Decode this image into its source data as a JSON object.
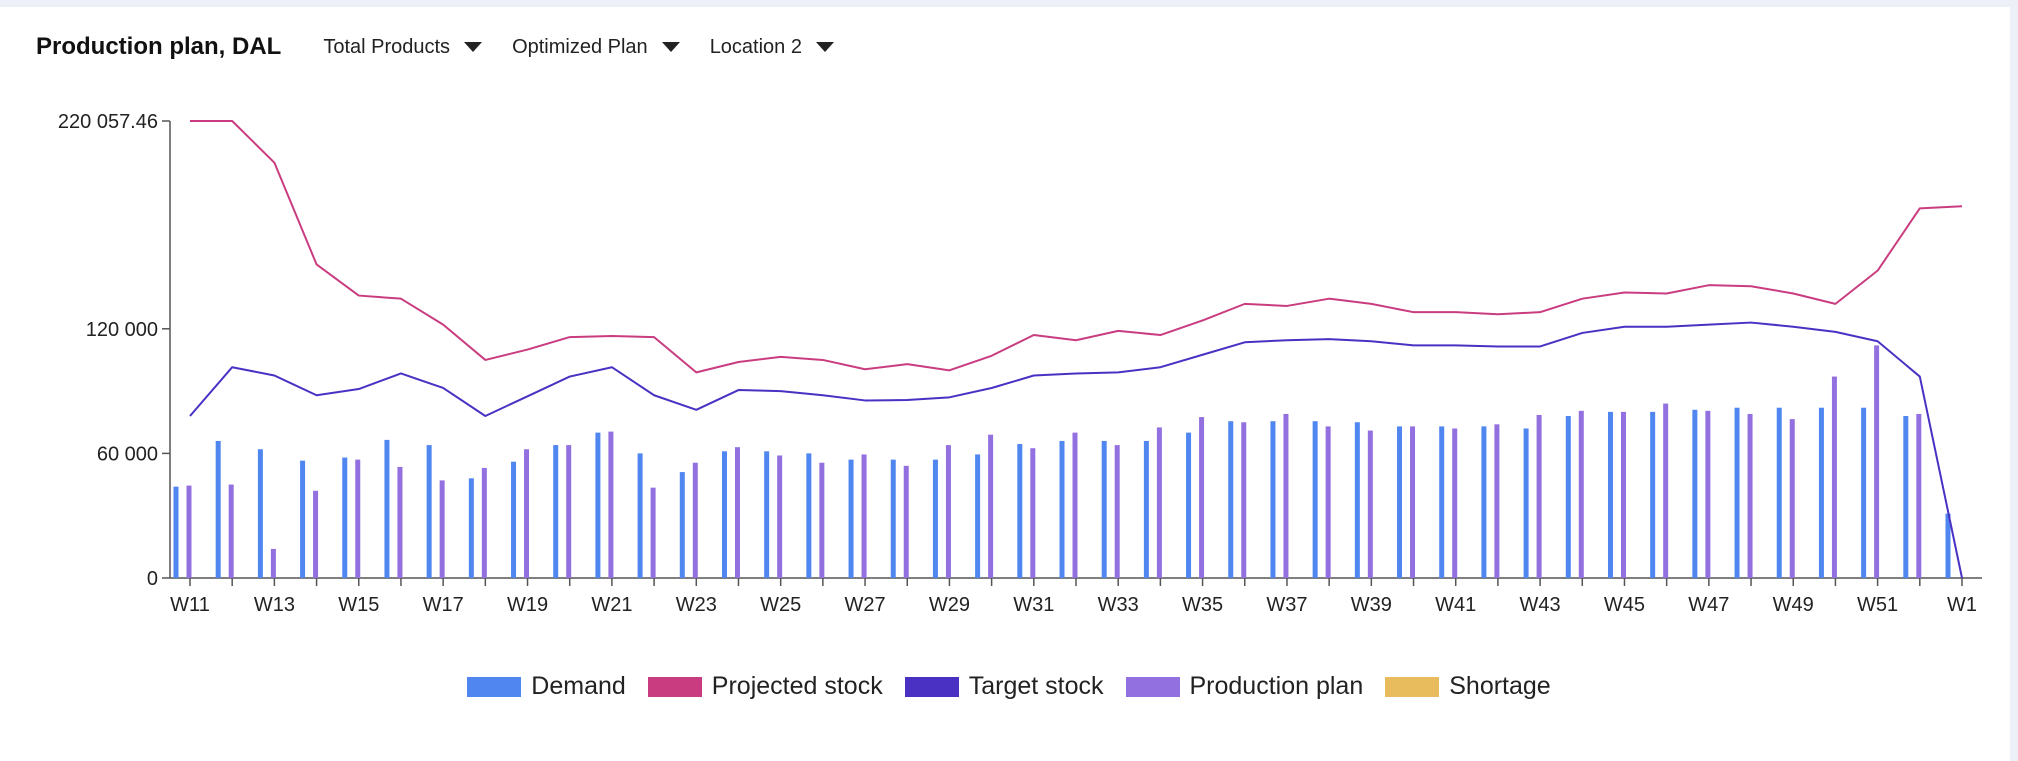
{
  "header": {
    "title": "Production plan, DAL",
    "dropdowns": [
      {
        "label": "Total Products"
      },
      {
        "label": "Optimized Plan"
      },
      {
        "label": "Location 2"
      }
    ]
  },
  "chart_data": {
    "type": "bar",
    "x": [
      "W11",
      "W12",
      "W13",
      "W14",
      "W15",
      "W16",
      "W17",
      "W18",
      "W19",
      "W20",
      "W21",
      "W22",
      "W23",
      "W24",
      "W25",
      "W26",
      "W27",
      "W28",
      "W29",
      "W30",
      "W31",
      "W32",
      "W33",
      "W34",
      "W35",
      "W36",
      "W37",
      "W38",
      "W39",
      "W40",
      "W41",
      "W42",
      "W43",
      "W44",
      "W45",
      "W46",
      "W47",
      "W48",
      "W49",
      "W50",
      "W51",
      "W52",
      "W1"
    ],
    "x_tick_labels": [
      "W11",
      "W13",
      "W15",
      "W17",
      "W19",
      "W21",
      "W23",
      "W25",
      "W27",
      "W29",
      "W31",
      "W33",
      "W35",
      "W37",
      "W39",
      "W41",
      "W43",
      "W45",
      "W47",
      "W49",
      "W51",
      "W1"
    ],
    "y_ticks": [
      {
        "value": 0,
        "label": "0"
      },
      {
        "value": 60000,
        "label": "60 000"
      },
      {
        "value": 120000,
        "label": "120 000"
      },
      {
        "value": 220057.46,
        "label": "220 057.46"
      }
    ],
    "ylim": [
      0,
      220057.46
    ],
    "series": [
      {
        "name": "Demand",
        "kind": "bar",
        "color": "#4f86f0",
        "values": [
          44000,
          66000,
          62000,
          56500,
          58000,
          66500,
          64000,
          48000,
          56000,
          64000,
          70000,
          60000,
          51000,
          61000,
          61000,
          60000,
          57000,
          57000,
          57000,
          59500,
          64500,
          66000,
          66000,
          66000,
          70000,
          75500,
          75500,
          75500,
          75000,
          73000,
          73000,
          73000,
          72000,
          78000,
          80000,
          80000,
          81000,
          82000,
          82000,
          82000,
          82000,
          78000,
          31000
        ]
      },
      {
        "name": "Production plan",
        "kind": "bar",
        "color": "#9370e0",
        "values": [
          44500,
          45000,
          14000,
          42000,
          57000,
          53500,
          47000,
          53000,
          62000,
          64000,
          70500,
          43500,
          55500,
          63000,
          59000,
          55500,
          59500,
          54000,
          64000,
          69000,
          62500,
          70000,
          64000,
          72500,
          77500,
          75000,
          79000,
          73000,
          71000,
          73000,
          72000,
          74000,
          78500,
          80500,
          80000,
          84000,
          80500,
          79000,
          76500,
          97000,
          112000,
          79000,
          0
        ]
      },
      {
        "name": "Projected stock",
        "kind": "line",
        "color": "#c93d80",
        "values": [
          220057,
          220057,
          200000,
          151000,
          136000,
          134500,
          122000,
          105000,
          110000,
          116000,
          116500,
          116000,
          99000,
          104000,
          106500,
          105000,
          100500,
          103000,
          100000,
          107000,
          117000,
          114500,
          119000,
          117000,
          124000,
          132000,
          131000,
          134500,
          132000,
          128000,
          128000,
          127000,
          128000,
          134500,
          137500,
          137000,
          141000,
          140500,
          137000,
          132000,
          148000,
          178000,
          179000
        ]
      },
      {
        "name": "Target stock",
        "kind": "line",
        "color": "#4a31c4",
        "values": [
          78000,
          101500,
          97500,
          88000,
          91000,
          98500,
          91500,
          78000,
          87500,
          97000,
          101500,
          88000,
          81000,
          90500,
          90000,
          88000,
          85500,
          85700,
          87000,
          91500,
          97500,
          98500,
          99000,
          101500,
          107500,
          113500,
          114500,
          115000,
          114000,
          112000,
          112000,
          111500,
          111500,
          118000,
          121000,
          121000,
          122000,
          123000,
          121000,
          118500,
          114000,
          97000,
          0
        ]
      },
      {
        "name": "Shortage",
        "kind": "bar",
        "color": "#e8bb5c",
        "values": [
          0,
          0,
          0,
          0,
          0,
          0,
          0,
          0,
          0,
          0,
          0,
          0,
          0,
          0,
          0,
          0,
          0,
          0,
          0,
          0,
          0,
          0,
          0,
          0,
          0,
          0,
          0,
          0,
          0,
          0,
          0,
          0,
          0,
          0,
          0,
          0,
          0,
          0,
          0,
          0,
          0,
          0,
          0
        ]
      }
    ],
    "legend": [
      {
        "label": "Demand",
        "color": "#4f86f0"
      },
      {
        "label": "Projected stock",
        "color": "#c93d80"
      },
      {
        "label": "Target stock",
        "color": "#4a31c4"
      },
      {
        "label": "Production plan",
        "color": "#9370e0"
      },
      {
        "label": "Shortage",
        "color": "#e8bb5c"
      }
    ],
    "legend_position": "bottom-center",
    "grid": false
  }
}
